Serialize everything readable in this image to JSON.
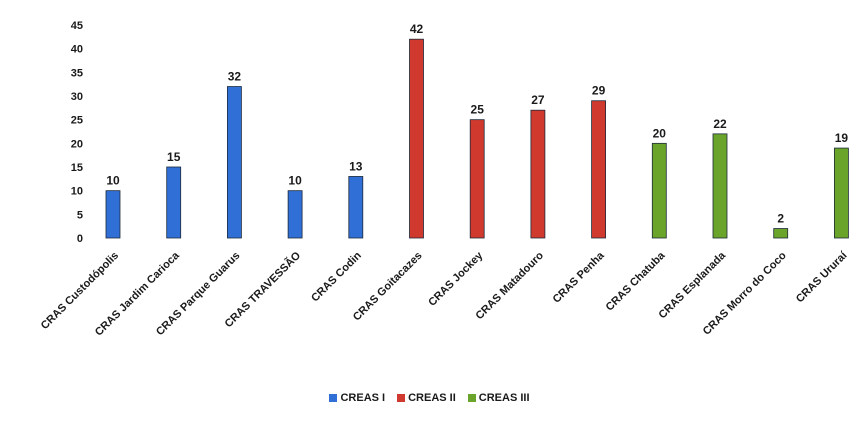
{
  "chart_data": {
    "type": "bar",
    "title": "",
    "xlabel": "",
    "ylabel": "",
    "ylim": [
      0,
      45
    ],
    "yticks": [
      0,
      5,
      10,
      15,
      20,
      25,
      30,
      35,
      40,
      45
    ],
    "legend_position": "bottom",
    "grid": false,
    "categories": [
      "CRAS Custodópolis",
      "CRAS Jardim Carioca",
      "CRAS Parque Guarus",
      "CRAS TRAVESSÃO",
      "CRAS Codin",
      "CRAS Goitacazes",
      "CRAS Jockey",
      "CRAS Matadouro",
      "CRAS Penha",
      "CRAS Chatuba",
      "CRAS Esplanada",
      "CRAS Morro do Coco",
      "CRAS Ururaí"
    ],
    "values": [
      10,
      15,
      32,
      10,
      13,
      42,
      25,
      27,
      29,
      20,
      22,
      2,
      19
    ],
    "groups": [
      0,
      0,
      0,
      0,
      0,
      1,
      1,
      1,
      1,
      2,
      2,
      2,
      2
    ],
    "series": [
      {
        "name": "CREAS I",
        "color": "#2f6fd6"
      },
      {
        "name": "CREAS II",
        "color": "#d03a2e"
      },
      {
        "name": "CREAS III",
        "color": "#6aa42a"
      }
    ]
  }
}
